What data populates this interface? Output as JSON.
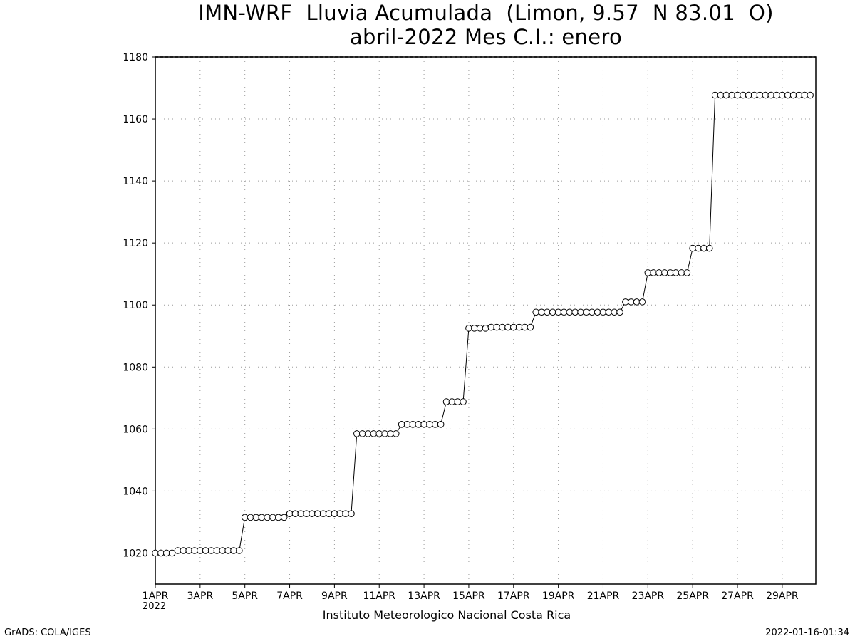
{
  "header": {
    "title": "IMN-WRF  Lluvia Acumulada  (Limon, 9.57  N 83.01  O)",
    "subtitle": "abril-2022 Mes C.I.: enero"
  },
  "footer": {
    "left": "GrADS: COLA/IGES",
    "right": "2022-01-16-01:34",
    "source": "Instituto Meteorologico Nacional Costa Rica",
    "year": "2022"
  },
  "chart_data": {
    "type": "line",
    "title": "IMN-WRF  Lluvia Acumulada  (Limon, 9.57  N 83.01  O)",
    "subtitle": "abril-2022 Mes C.I.: enero",
    "xlabel": "",
    "ylabel": "",
    "x_range_days": [
      1,
      30.5
    ],
    "ylim": [
      1010,
      1180
    ],
    "y_ticks": [
      1020,
      1040,
      1060,
      1080,
      1100,
      1120,
      1140,
      1160,
      1180
    ],
    "x_ticks": [
      {
        "day": 1,
        "label": "1APR"
      },
      {
        "day": 3,
        "label": "3APR"
      },
      {
        "day": 5,
        "label": "5APR"
      },
      {
        "day": 7,
        "label": "7APR"
      },
      {
        "day": 9,
        "label": "9APR"
      },
      {
        "day": 11,
        "label": "11APR"
      },
      {
        "day": 13,
        "label": "13APR"
      },
      {
        "day": 15,
        "label": "15APR"
      },
      {
        "day": 17,
        "label": "17APR"
      },
      {
        "day": 19,
        "label": "19APR"
      },
      {
        "day": 21,
        "label": "21APR"
      },
      {
        "day": 23,
        "label": "23APR"
      },
      {
        "day": 25,
        "label": "25APR"
      },
      {
        "day": 27,
        "label": "27APR"
      },
      {
        "day": 29,
        "label": "29APR"
      }
    ],
    "grid": true,
    "marker": "open-circle",
    "sampling_interval_hours": 6,
    "series": [
      {
        "start_day": 1,
        "values": [
          1020,
          1020,
          1020,
          1020,
          1020.8,
          1020.8,
          1020.8,
          1020.8,
          1020.8,
          1020.8,
          1020.8,
          1020.8,
          1020.8,
          1020.8,
          1020.8,
          1020.8,
          1031.5,
          1031.5,
          1031.5,
          1031.5,
          1031.5,
          1031.5,
          1031.5,
          1031.5,
          1032.7,
          1032.7,
          1032.7,
          1032.7,
          1032.7,
          1032.7,
          1032.7,
          1032.7,
          1032.7,
          1032.7,
          1032.7,
          1032.7,
          1058.5,
          1058.5,
          1058.5,
          1058.5,
          1058.5,
          1058.5,
          1058.5,
          1058.5,
          1061.5,
          1061.5,
          1061.5,
          1061.5,
          1061.5,
          1061.5,
          1061.5,
          1061.5,
          1068.8,
          1068.8,
          1068.8,
          1068.8,
          1092.5,
          1092.5,
          1092.5,
          1092.5,
          1092.8,
          1092.8,
          1092.8,
          1092.8,
          1092.8,
          1092.8,
          1092.8,
          1092.8,
          1097.7,
          1097.7,
          1097.7,
          1097.7,
          1097.7,
          1097.7,
          1097.7,
          1097.7,
          1097.7,
          1097.7,
          1097.7,
          1097.7,
          1097.7,
          1097.7,
          1097.7,
          1097.7,
          1101,
          1101,
          1101,
          1101,
          1110.4,
          1110.4,
          1110.4,
          1110.4,
          1110.4,
          1110.4,
          1110.4,
          1110.4,
          1118.3,
          1118.3,
          1118.3,
          1118.3,
          1167.7,
          1167.7,
          1167.7,
          1167.7,
          1167.7,
          1167.7,
          1167.7,
          1167.7,
          1167.7,
          1167.7,
          1167.7,
          1167.7,
          1167.7,
          1167.7,
          1167.7,
          1167.7,
          1167.7,
          1167.7
        ]
      }
    ]
  }
}
